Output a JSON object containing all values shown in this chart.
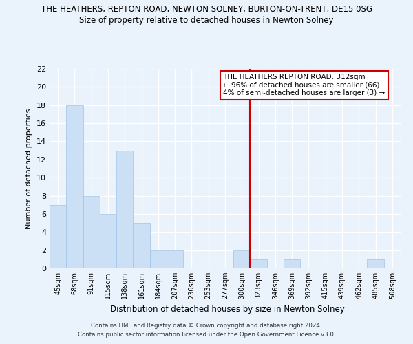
{
  "title": "THE HEATHERS, REPTON ROAD, NEWTON SOLNEY, BURTON-ON-TRENT, DE15 0SG",
  "subtitle": "Size of property relative to detached houses in Newton Solney",
  "xlabel": "Distribution of detached houses by size in Newton Solney",
  "ylabel": "Number of detached properties",
  "bar_color": "#cce0f5",
  "bar_edge_color": "#a0c4e8",
  "categories": [
    "45sqm",
    "68sqm",
    "91sqm",
    "115sqm",
    "138sqm",
    "161sqm",
    "184sqm",
    "207sqm",
    "230sqm",
    "253sqm",
    "277sqm",
    "300sqm",
    "323sqm",
    "346sqm",
    "369sqm",
    "392sqm",
    "415sqm",
    "439sqm",
    "462sqm",
    "485sqm",
    "508sqm"
  ],
  "values": [
    7,
    18,
    8,
    6,
    13,
    5,
    2,
    2,
    0,
    0,
    0,
    2,
    1,
    0,
    1,
    0,
    0,
    0,
    0,
    1,
    0
  ],
  "ylim": [
    0,
    22
  ],
  "yticks": [
    0,
    2,
    4,
    6,
    8,
    10,
    12,
    14,
    16,
    18,
    20,
    22
  ],
  "vline_x": 11.5,
  "annotation_text": "THE HEATHERS REPTON ROAD: 312sqm\n← 96% of detached houses are smaller (66)\n4% of semi-detached houses are larger (3) →",
  "footer_line1": "Contains HM Land Registry data © Crown copyright and database right 2024.",
  "footer_line2": "Contains public sector information licensed under the Open Government Licence v3.0.",
  "background_color": "#eaf2fb",
  "grid_color": "#ffffff",
  "vline_color": "#cc0000"
}
